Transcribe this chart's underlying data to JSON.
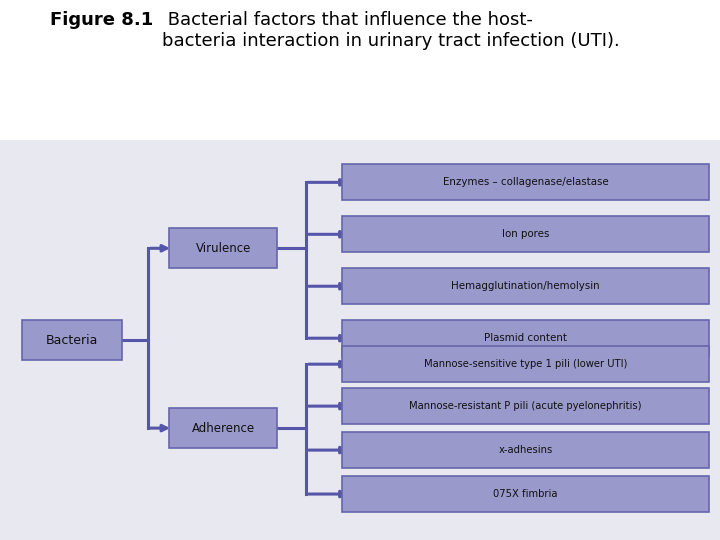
{
  "title_bold": "Figure 8.1",
  "title_normal": " Bacterial factors that influence the host-\nbacteria interaction in urinary tract infection (UTI).",
  "background_color": "#e8e8f0",
  "box_fill": "#9999cc",
  "box_edge": "#6666aa",
  "box_text_color": "#111111",
  "line_color": "#5555aa",
  "line_width": 2.2,
  "root_label": "Bacteria",
  "mid_labels": [
    "Virulence",
    "Adherence"
  ],
  "leaf_labels": [
    "Enzymes – collagenase/elastase",
    "Ion pores",
    "Hemagglutination/hemolysin",
    "Plasmid content",
    "Mannose-sensitive type 1 pili (lower UTI)",
    "Mannose-resistant P pili (acute pyelonephritis)",
    "x-adhesins",
    "075X fimbria"
  ],
  "virulence_leaves": [
    0,
    1,
    2,
    3
  ],
  "adherence_leaves": [
    4,
    5,
    6,
    7
  ],
  "fig_width": 7.2,
  "fig_height": 5.4,
  "dpi": 100
}
